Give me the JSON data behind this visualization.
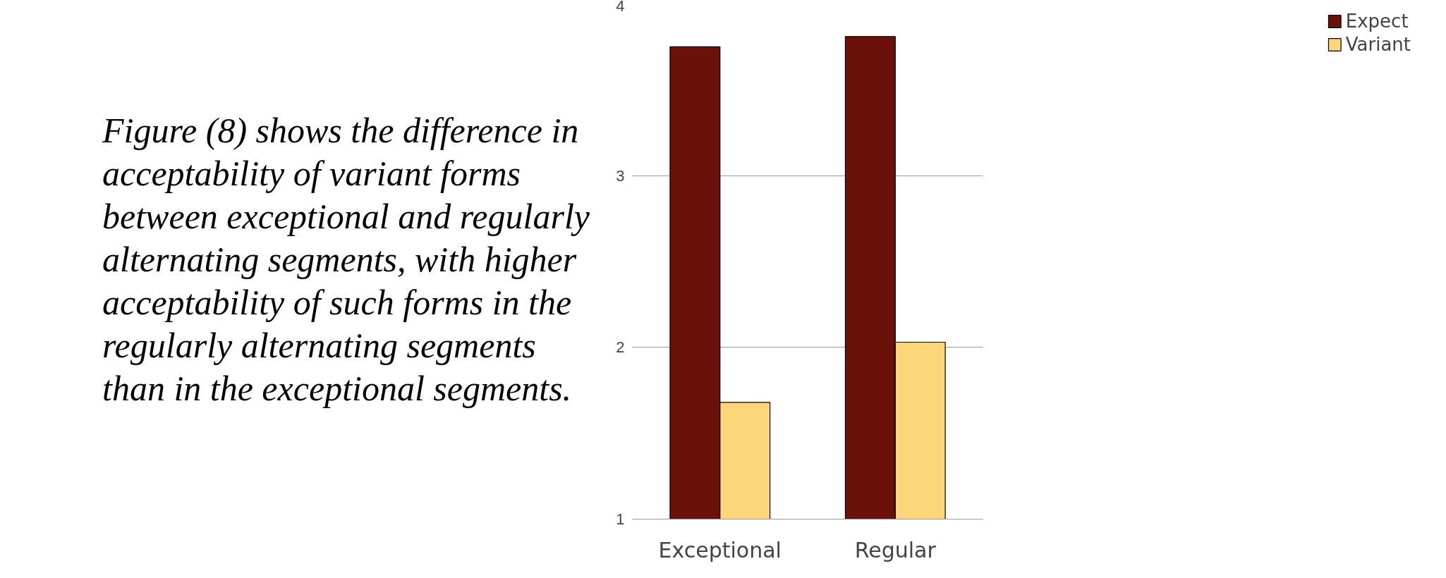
{
  "chart_data": {
    "type": "bar",
    "categories": [
      "Exceptional",
      "Regular"
    ],
    "series": [
      {
        "name": "Expect",
        "color": "#6a110a",
        "values": [
          3.75,
          3.81
        ]
      },
      {
        "name": "Variant",
        "color": "#fed67a",
        "values": [
          1.68,
          2.03
        ]
      }
    ],
    "ylim": [
      1,
      4
    ],
    "yticks": [
      1,
      2,
      3,
      4
    ],
    "grid": "y",
    "legend": "right",
    "annotations": [
      "Figure (8) shows the difference in acceptability of variant forms between exceptional and regularly alternating segments, with higher acceptability of such forms in the regularly alternating segments than in the exceptional segments."
    ]
  }
}
